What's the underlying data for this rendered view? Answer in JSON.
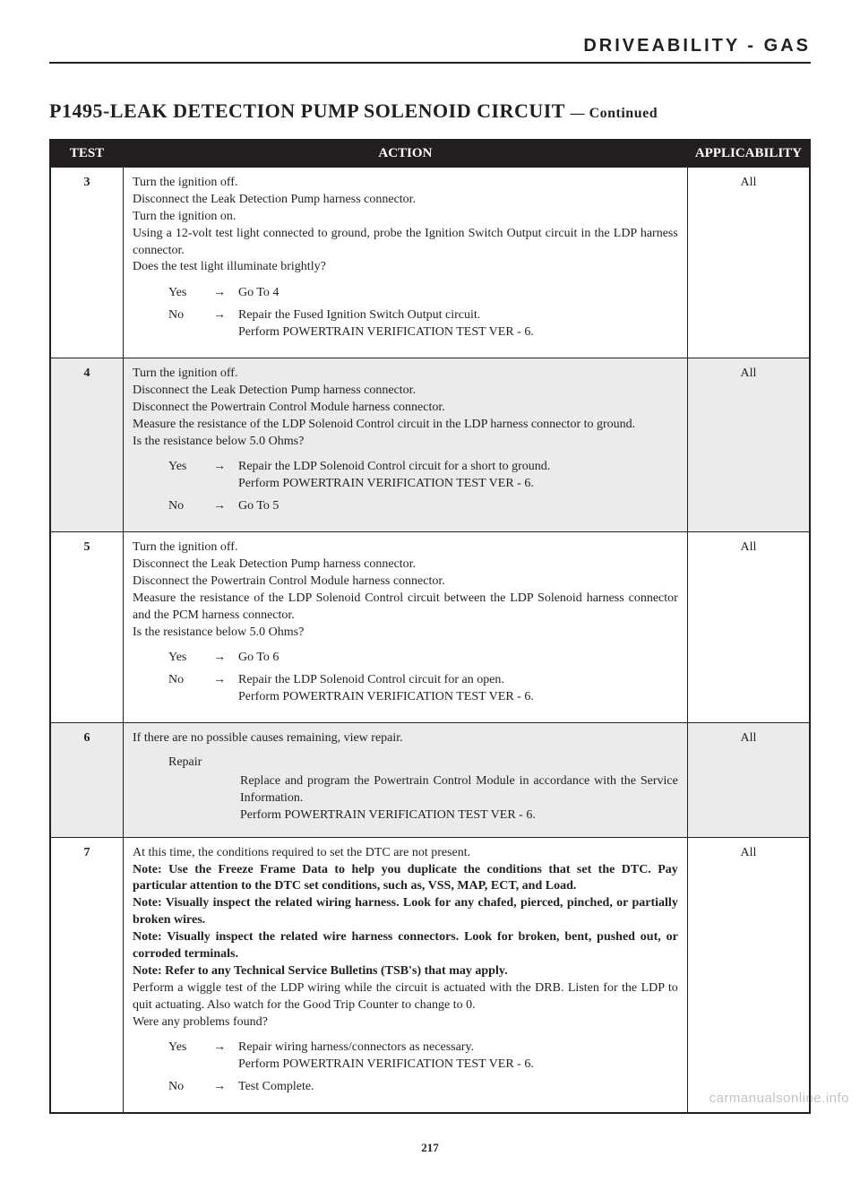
{
  "header": "DRIVEABILITY - GAS",
  "title_main": "P1495-LEAK DETECTION PUMP SOLENOID CIRCUIT",
  "title_cont": "— Continued",
  "columns": {
    "test": "TEST",
    "action": "ACTION",
    "applic": "APPLICABILITY"
  },
  "all": "All",
  "yes": "Yes",
  "no": "No",
  "arrow": "→",
  "repair_label": "Repair",
  "rows": [
    {
      "num": "3",
      "shade": false,
      "body": "Turn the ignition off.\nDisconnect the Leak Detection Pump harness connector.\nTurn the ignition on.\nUsing a 12-volt test light connected to ground, probe the Ignition Switch Output circuit in the LDP harness connector.\nDoes the test light illuminate brightly?",
      "yes": "Go To   4",
      "no": "Repair the Fused Ignition Switch Output circuit.\nPerform POWERTRAIN VERIFICATION TEST VER - 6."
    },
    {
      "num": "4",
      "shade": true,
      "body": "Turn the ignition off.\nDisconnect the Leak Detection Pump harness connector.\nDisconnect the Powertrain Control Module harness connector.\nMeasure the resistance of the LDP Solenoid Control circuit in the LDP harness connector to ground.\nIs the resistance below 5.0 Ohms?",
      "yes": "Repair the LDP Solenoid Control circuit for a short to ground.\nPerform POWERTRAIN VERIFICATION TEST VER - 6.",
      "no": "Go To   5"
    },
    {
      "num": "5",
      "shade": false,
      "body": "Turn the ignition off.\nDisconnect the Leak Detection Pump harness connector.\nDisconnect the Powertrain Control Module harness connector.\nMeasure the resistance of the LDP Solenoid Control circuit between the LDP Solenoid harness connector and the PCM harness connector.\nIs the resistance below 5.0 Ohms?",
      "yes": "Go To   6",
      "no": "Repair the LDP Solenoid Control circuit for an open.\nPerform POWERTRAIN VERIFICATION TEST VER - 6."
    },
    {
      "num": "6",
      "shade": true,
      "body": "If there are no possible causes remaining, view repair.",
      "repair": "Replace and program the Powertrain Control Module in accordance with the Service Information.\nPerform POWERTRAIN VERIFICATION TEST VER - 6."
    },
    {
      "num": "7",
      "shade": false,
      "body_html": "At this time, the conditions required to set the DTC are not present.\n<b>Note: Use the Freeze Frame Data to help you duplicate the conditions that set the DTC. Pay particular attention to the DTC set conditions, such as, VSS, MAP, ECT, and Load.</b>\n<b>Note: Visually inspect the related wiring harness. Look for any chafed, pierced, pinched, or partially broken wires.</b>\n<b>Note: Visually inspect the related wire harness connectors. Look for broken, bent, pushed out, or corroded terminals.</b>\n<b>Note: Refer to any Technical Service Bulletins (TSB's) that may apply.</b>\nPerform a wiggle test of the LDP wiring while the circuit is actuated with the DRB. Listen for the LDP to quit actuating. Also watch for the Good Trip Counter to change to 0.\nWere any problems found?",
      "yes": "Repair wiring harness/connectors as necessary.\nPerform POWERTRAIN VERIFICATION TEST VER - 6.",
      "no": "Test Complete."
    }
  ],
  "page_number": "217",
  "watermark": "carmanualsonline.info"
}
